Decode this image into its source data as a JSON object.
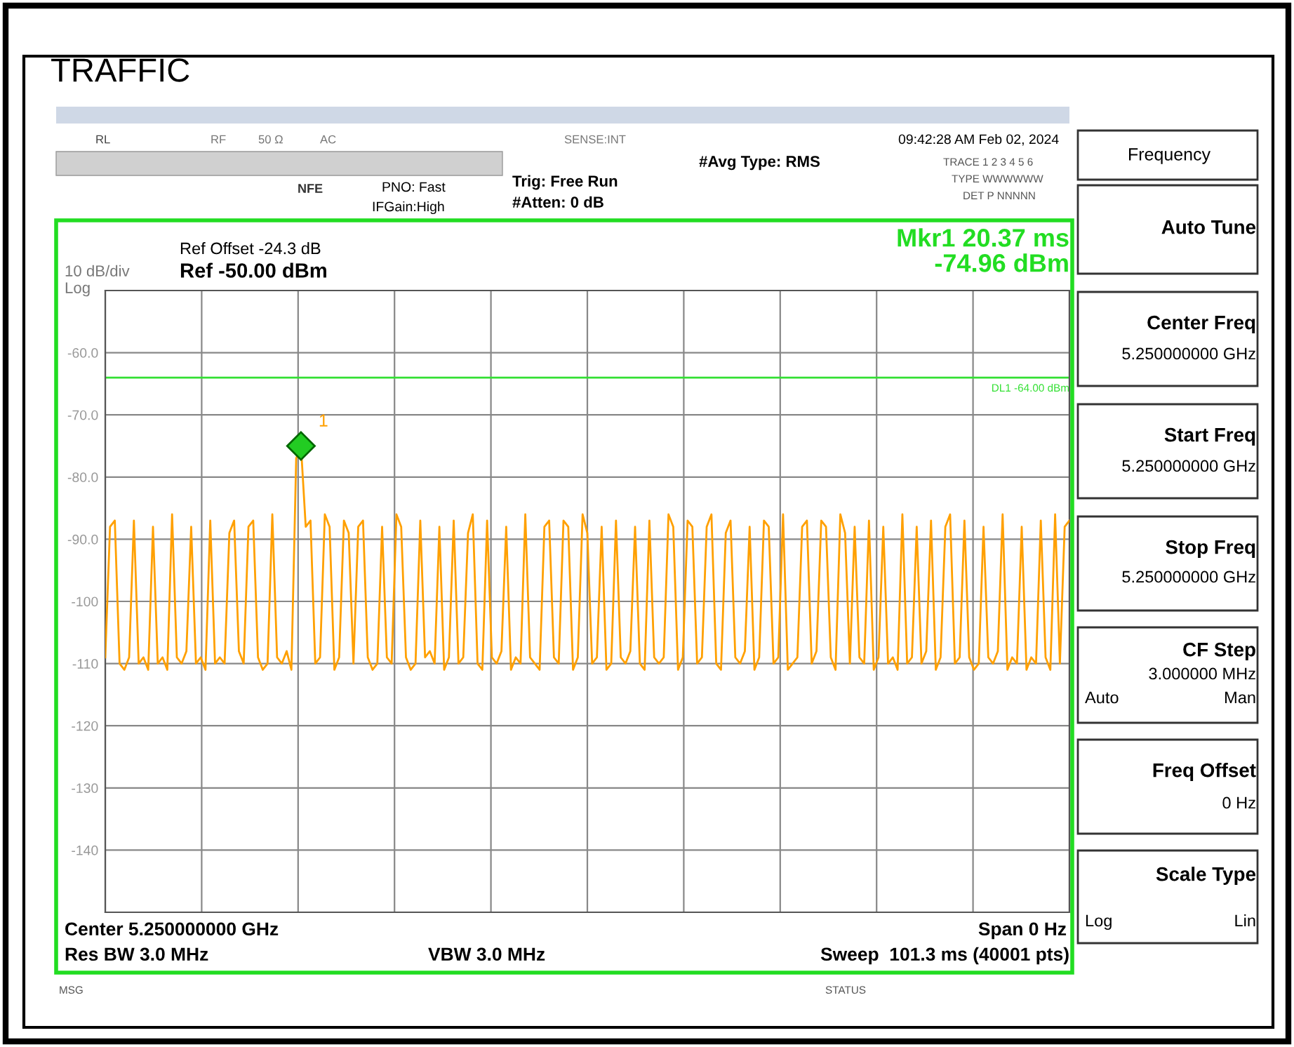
{
  "chart_data": {
    "type": "line",
    "title": "TRAFFIC",
    "categories": [
      null,
      null,
      null,
      null,
      null,
      null,
      null,
      null,
      null,
      null,
      null,
      null,
      null,
      null,
      null,
      null,
      null,
      null,
      null,
      null,
      null,
      null,
      null,
      null,
      null,
      null,
      null,
      null,
      null,
      null,
      null,
      null,
      null,
      null,
      null,
      null,
      null,
      null,
      null,
      null,
      null,
      null,
      null,
      null,
      null,
      null,
      null,
      null,
      null,
      null,
      null,
      null,
      null,
      null,
      null,
      null,
      null,
      null,
      null,
      null,
      null,
      null,
      null,
      null,
      null,
      null,
      null,
      null,
      null,
      null,
      null,
      null,
      null,
      null,
      null,
      null,
      null,
      null,
      null,
      null,
      null,
      null,
      null,
      null,
      null,
      null,
      null,
      null,
      null,
      null,
      null,
      null,
      null,
      null,
      null,
      null,
      null,
      null,
      null,
      null,
      null,
      null,
      null,
      null,
      null,
      null,
      null,
      null,
      null,
      null,
      null,
      null,
      null,
      null,
      null,
      null,
      null,
      null,
      null,
      null,
      null,
      null,
      null,
      null,
      null,
      null,
      null,
      null,
      null,
      null,
      null,
      null,
      null,
      null,
      null,
      null,
      null,
      null,
      null,
      null,
      null,
      null,
      null,
      null,
      null,
      null,
      null,
      null,
      null,
      null,
      null,
      null,
      null,
      null,
      null,
      null,
      null,
      null,
      null,
      null,
      null,
      null,
      null,
      null,
      null,
      null,
      null,
      null,
      null,
      null,
      null,
      null,
      null,
      null,
      null,
      null,
      null,
      null,
      null,
      null,
      null,
      null,
      null,
      null,
      null,
      null,
      null,
      null,
      null,
      null,
      null,
      null,
      null,
      null,
      null,
      null,
      null,
      null,
      null,
      null,
      null,
      null,
      null
    ],
    "ylim": [
      -150,
      -50
    ],
    "yticks": [
      {
        "value": -50,
        "label": null
      },
      {
        "value": -60,
        "label": "-60.0"
      },
      {
        "value": -70,
        "label": "-70.0"
      },
      {
        "value": -80,
        "label": "-80.0"
      },
      {
        "value": -90,
        "label": "-90.0"
      },
      {
        "value": -100,
        "label": "-100"
      },
      {
        "value": -110,
        "label": "-110"
      },
      {
        "value": -120,
        "label": "-120"
      },
      {
        "value": -130,
        "label": "-130"
      },
      {
        "value": -140,
        "label": "-140"
      },
      {
        "value": -150,
        "label": null
      }
    ],
    "tick_labels": "y",
    "grid": true,
    "line_style": "solid",
    "marker": "none",
    "ref_lines": [
      {
        "axis": "y",
        "value": -64,
        "label": "DL1 -64.00 dBm",
        "color": "#33e033"
      }
    ],
    "series": [
      {
        "color": "#ffa000",
        "values": [
          -109,
          -88,
          -87,
          -110,
          -111,
          -109,
          -87,
          -110,
          -109,
          -111,
          -88,
          -110,
          -109,
          -111,
          -86,
          -109,
          -110,
          -108,
          -88,
          -110,
          -109,
          -111,
          -87,
          -110,
          -109,
          -110,
          -89,
          -87,
          -108,
          -110,
          -88,
          -87,
          -109,
          -111,
          -110,
          -86,
          -109,
          -110,
          -108,
          -111,
          -77,
          -75,
          -88,
          -87,
          -110,
          -109,
          -86,
          -88,
          -111,
          -109,
          -87,
          -89,
          -110,
          -88,
          -87,
          -109,
          -111,
          -110,
          -88,
          -109,
          -110,
          -86,
          -88,
          -109,
          -111,
          -110,
          -87,
          -109,
          -108,
          -110,
          -88,
          -111,
          -109,
          -87,
          -110,
          -109,
          -89,
          -86,
          -110,
          -111,
          -87,
          -109,
          -110,
          -108,
          -88,
          -111,
          -109,
          -110,
          -86,
          -109,
          -110,
          -111,
          -88,
          -87,
          -109,
          -110,
          -87,
          -88,
          -111,
          -109,
          -86,
          -89,
          -110,
          -109,
          -88,
          -111,
          -110,
          -87,
          -109,
          -110,
          -108,
          -88,
          -110,
          -111,
          -87,
          -109,
          -110,
          -109,
          -86,
          -88,
          -111,
          -109,
          -87,
          -88,
          -110,
          -109,
          -88,
          -86,
          -110,
          -111,
          -89,
          -87,
          -109,
          -110,
          -108,
          -88,
          -111,
          -109,
          -87,
          -88,
          -110,
          -109,
          -86,
          -111,
          -110,
          -109,
          -88,
          -87,
          -110,
          -108,
          -87,
          -88,
          -109,
          -111,
          -86,
          -89,
          -110,
          -88,
          -109,
          -110,
          -87,
          -111,
          -109,
          -88,
          -110,
          -109,
          -111,
          -86,
          -110,
          -109,
          -88,
          -110,
          -108,
          -87,
          -111,
          -109,
          -88,
          -86,
          -110,
          -109,
          -87,
          -109,
          -111,
          -110,
          -88,
          -109,
          -110,
          -108,
          -86,
          -111,
          -109,
          -110,
          -88,
          -111,
          -109,
          -110,
          -87,
          -109,
          -111,
          -86,
          -110,
          -88,
          -87
        ]
      }
    ],
    "annotations": [
      "RL",
      "RF",
      "50 Ω",
      "AC",
      "SENSE:INT",
      "09:42:28 AM Feb 02, 2024",
      "#Avg Type: RMS",
      "TRACE 1 2 3 4 5 6",
      "TYPE WWWWWW",
      "DET P NNNNN",
      "NFE",
      "PNO: Fast",
      "IFGain:High",
      "Trig: Free Run",
      "#Atten: 0 dB",
      "Ref Offset -24.3 dB",
      "Ref -50.00 dBm",
      "10 dB/div",
      "Log",
      "Mkr1 20.37 ms",
      "-74.96 dBm",
      "Center 5.250000000 GHz",
      "Res BW 3.0 MHz",
      "VBW 3.0 MHz",
      "Span 0 Hz",
      "Sweep  101.3 ms (40001 pts)",
      "MSG",
      "STATUS",
      "Frequency",
      "Auto Tune",
      "Center Freq",
      "5.250000000 GHz",
      "Start Freq",
      "5.250000000 GHz",
      "Stop Freq",
      "5.250000000 GHz",
      "CF Step",
      "3.000000 MHz",
      "Auto",
      "Man",
      "Freq Offset",
      "0 Hz",
      "Scale Type",
      "Log",
      "Lin",
      "1"
    ]
  }
}
